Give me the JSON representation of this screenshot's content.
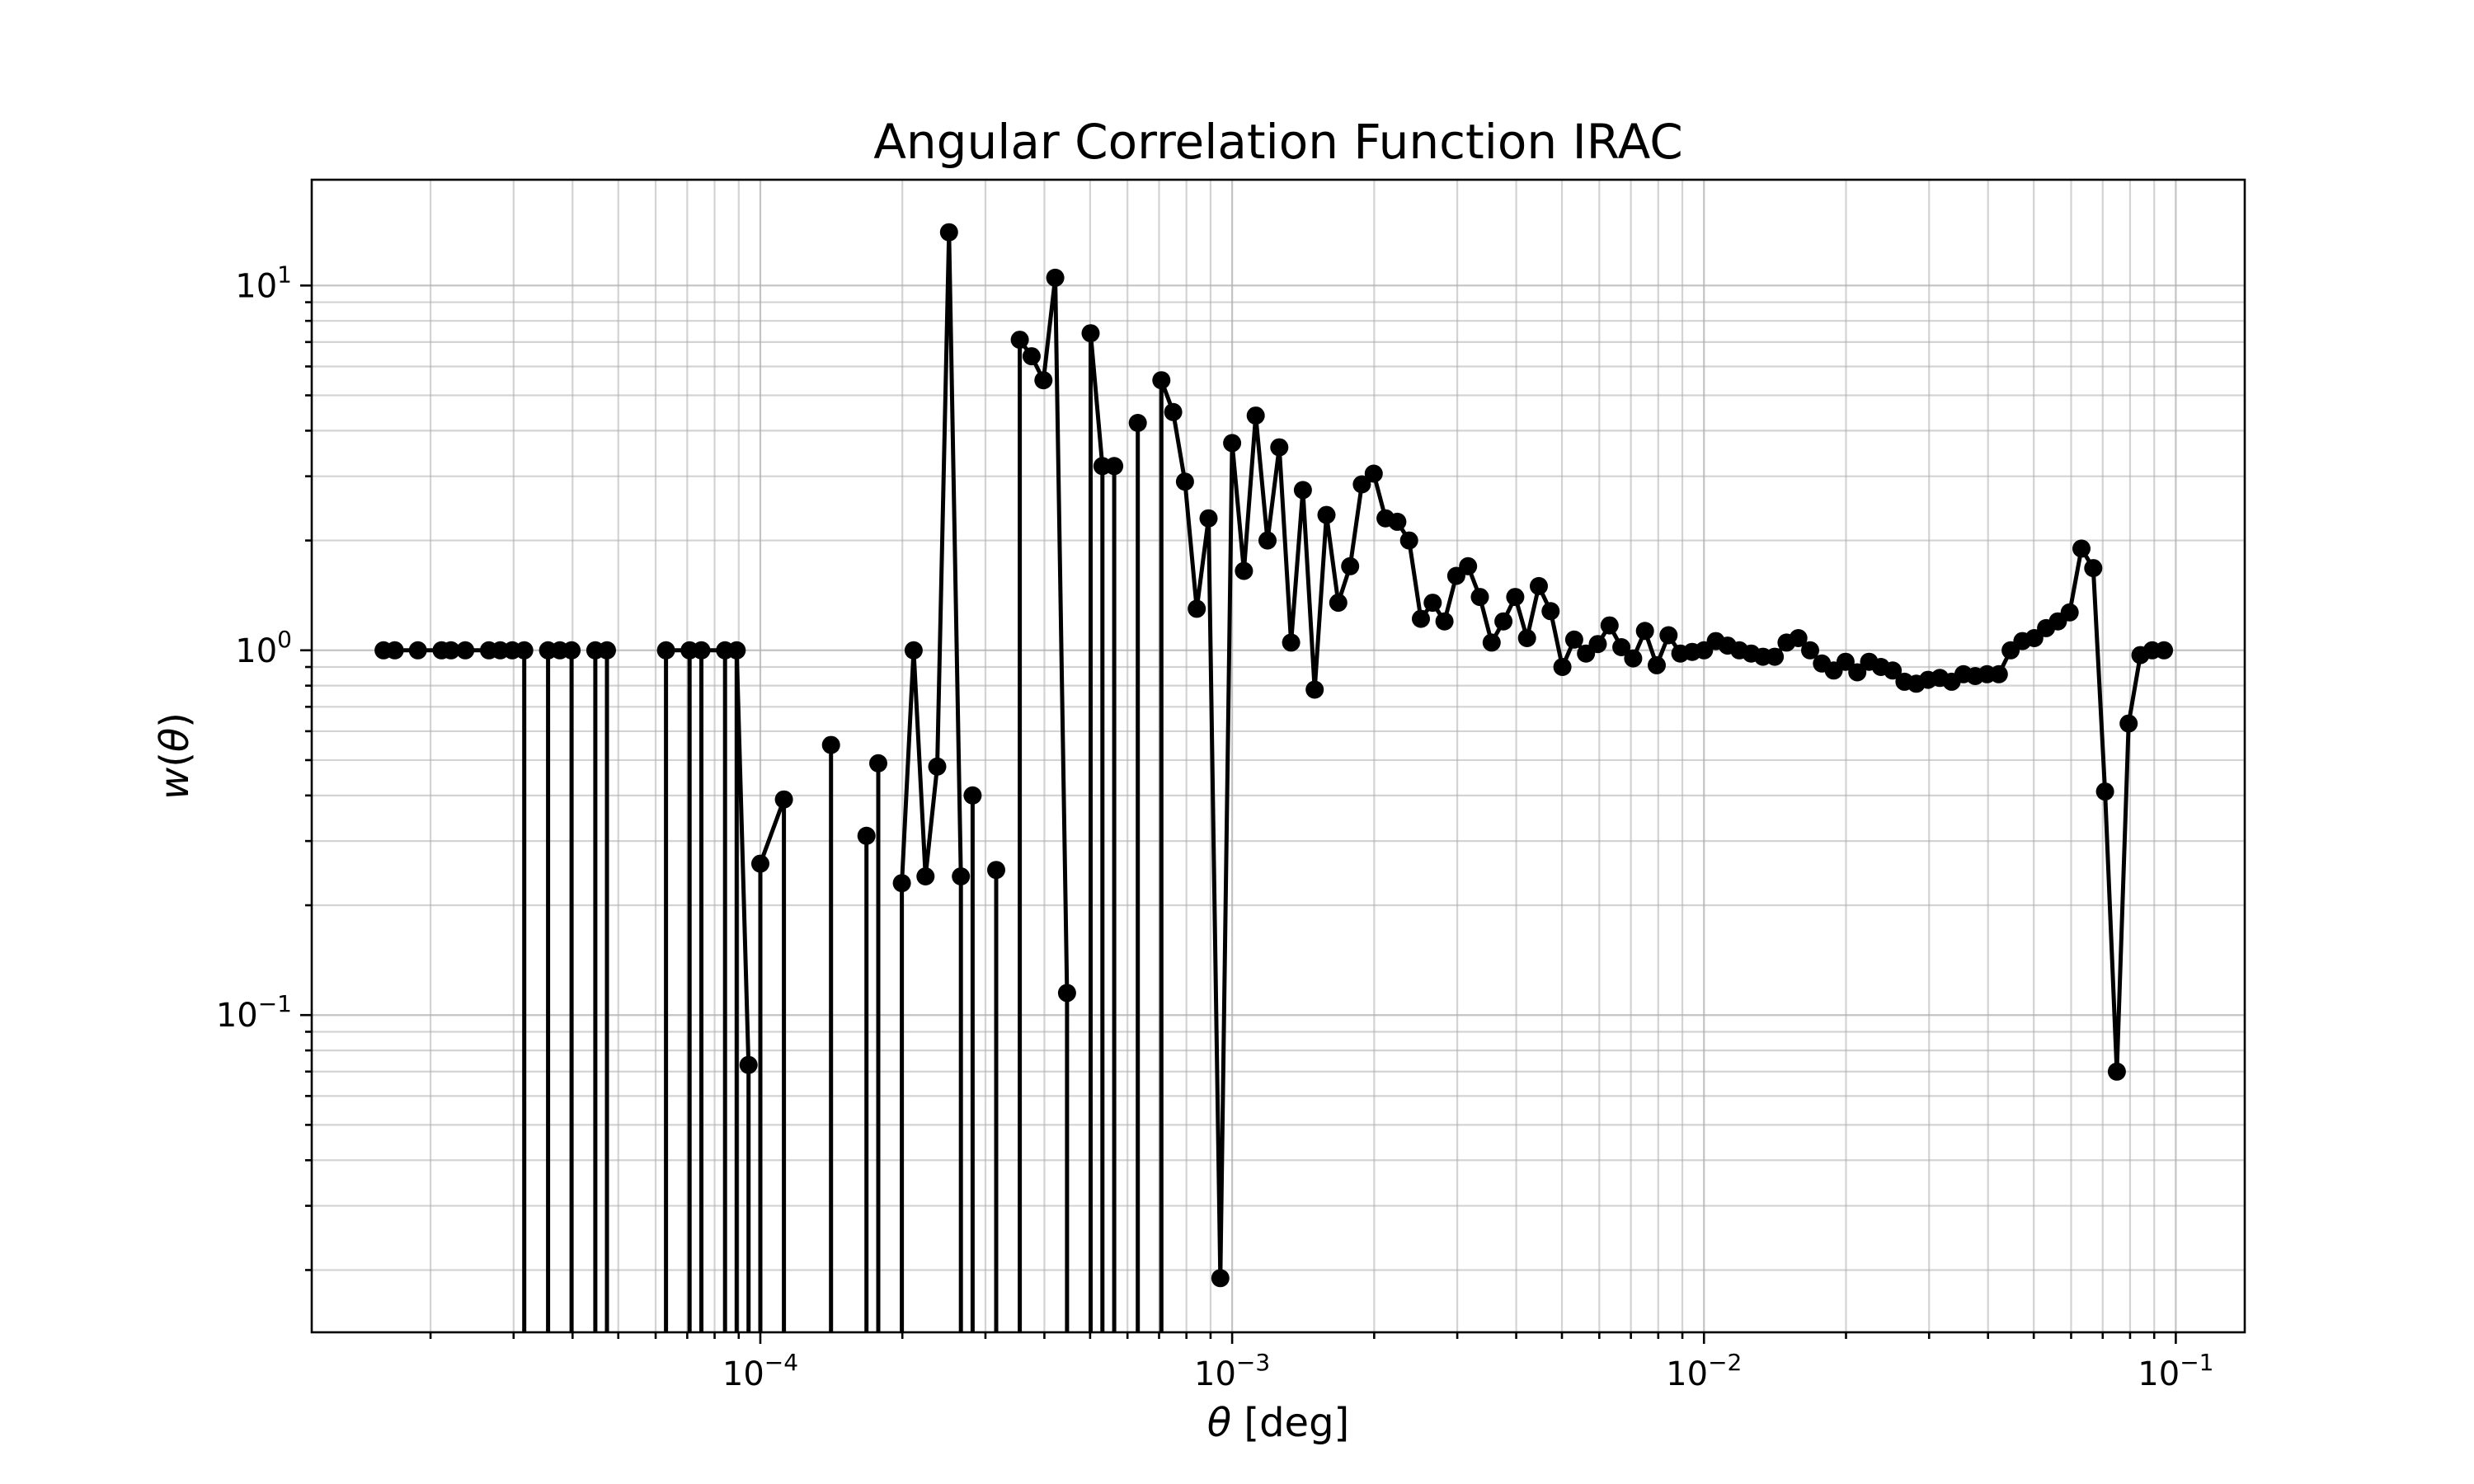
{
  "chart_data": {
    "type": "line",
    "title": "Angular Correlation Function IRAC",
    "xlabel": "θ [deg]",
    "ylabel": "w(θ)",
    "xscale": "log",
    "yscale": "log",
    "xlim": [
      1.12e-05,
      0.14
    ],
    "ylim": [
      0.0135,
      19.5
    ],
    "grid": "major and minor",
    "x_ticks": [
      {
        "value": 0.0001,
        "base": "10",
        "exp": "−4"
      },
      {
        "value": 0.001,
        "base": "10",
        "exp": "−3"
      },
      {
        "value": 0.01,
        "base": "10",
        "exp": "−2"
      },
      {
        "value": 0.1,
        "base": "10",
        "exp": "−1"
      }
    ],
    "y_ticks": [
      {
        "value": 0.1,
        "base": "10",
        "exp": "−1"
      },
      {
        "value": 1,
        "base": "10",
        "exp": "0"
      },
      {
        "value": 10,
        "base": "10",
        "exp": "1"
      }
    ],
    "series": [
      {
        "color": "#000000",
        "marker": "circle",
        "x": [
          1.59e-05,
          1.68e-05,
          1.88e-05,
          2.11e-05,
          2.21e-05,
          2.37e-05,
          2.66e-05,
          2.81e-05,
          2.98e-05,
          3.16e-05,
          3.55e-05,
          3.76e-05,
          3.98e-05,
          4.47e-05,
          4.73e-05,
          6.31e-05,
          7.08e-05,
          7.5e-05,
          8.42e-05,
          8.91e-05,
          9.44e-05,
          0.0001,
          0.0001122,
          0.0001412,
          0.0001679,
          0.0001778,
          0.0001995,
          0.0002113,
          0.0002239,
          0.0002371,
          0.0002512,
          0.0002661,
          0.0002818,
          0.0003162,
          0.0003548,
          0.0003758,
          0.0003981,
          0.0004217,
          0.0004467,
          0.0005012,
          0.0005309,
          0.0005623,
          0.000631,
          0.0007079,
          0.0007499,
          0.0007943,
          0.0008414,
          0.0008913,
          0.0009441,
          0.001,
          0.0010593,
          0.001122,
          0.0011885,
          0.0012589,
          0.0013335,
          0.0014125,
          0.0014962,
          0.0015849,
          0.0016788,
          0.0017783,
          0.0018836,
          0.0019953,
          0.0021135,
          0.0022387,
          0.0023714,
          0.0025119,
          0.0026607,
          0.0028184,
          0.0029854,
          0.0031623,
          0.0033497,
          0.0035481,
          0.0037584,
          0.0039811,
          0.004217,
          0.0044668,
          0.0047315,
          0.0050119,
          0.0053088,
          0.0056234,
          0.0059566,
          0.0063096,
          0.0066834,
          0.0070795,
          0.0074989,
          0.0079433,
          0.008414,
          0.0089125,
          0.0094406,
          0.01,
          0.0105925,
          0.0112202,
          0.011885,
          0.0125893,
          0.0133352,
          0.0141254,
          0.0149624,
          0.0158489,
          0.016788,
          0.0177828,
          0.0188365,
          0.0199526,
          0.0211349,
          0.0223872,
          0.0237137,
          0.0251189,
          0.0266073,
          0.0281838,
          0.0298538,
          0.0316228,
          0.0334965,
          0.0354813,
          0.0375837,
          0.0398107,
          0.0421697,
          0.0446684,
          0.0473151,
          0.0501187,
          0.0530884,
          0.0562341,
          0.0595662,
          0.0630957,
          0.0668344,
          0.0707946,
          0.0749894,
          0.0794328,
          0.0841395,
          0.0891251,
          0.0944061
        ],
        "y": [
          1.0,
          1.0,
          1.0,
          1.0,
          1.0,
          1.0,
          1.0,
          1.0,
          1.0,
          1.0,
          1.0,
          1.0,
          1.0,
          1.0,
          1.0,
          1.0,
          1.0,
          1.0,
          1.0,
          1.0,
          0.073,
          0.26,
          0.39,
          0.55,
          0.31,
          0.49,
          0.23,
          1.0,
          0.24,
          0.48,
          14.0,
          0.24,
          0.4,
          0.25,
          7.1,
          6.4,
          5.5,
          10.5,
          0.115,
          7.4,
          3.2,
          3.2,
          4.2,
          5.5,
          4.5,
          2.9,
          1.3,
          2.3,
          0.019,
          3.7,
          1.65,
          4.4,
          2.0,
          3.6,
          1.05,
          2.75,
          0.78,
          2.35,
          1.35,
          1.7,
          2.85,
          3.05,
          2.3,
          2.25,
          2.0,
          1.22,
          1.35,
          1.2,
          1.6,
          1.7,
          1.4,
          1.05,
          1.2,
          1.4,
          1.08,
          1.5,
          1.28,
          0.9,
          1.07,
          0.98,
          1.04,
          1.17,
          1.02,
          0.95,
          1.13,
          0.91,
          1.1,
          0.98,
          0.99,
          1.0,
          1.06,
          1.03,
          1.0,
          0.98,
          0.96,
          0.96,
          1.05,
          1.08,
          1.0,
          0.92,
          0.88,
          0.93,
          0.87,
          0.93,
          0.9,
          0.88,
          0.82,
          0.81,
          0.83,
          0.84,
          0.82,
          0.86,
          0.85,
          0.86,
          0.86,
          1.0,
          1.06,
          1.08,
          1.15,
          1.2,
          1.27,
          1.9,
          1.68,
          0.41,
          0.07,
          0.63,
          0.97,
          1.0,
          1.0
        ],
        "drop_to_zero_before_index": [
          10,
          13,
          15,
          17,
          19,
          21,
          23,
          24,
          25,
          26,
          32,
          33,
          34,
          39,
          41,
          42,
          43
        ]
      }
    ]
  }
}
